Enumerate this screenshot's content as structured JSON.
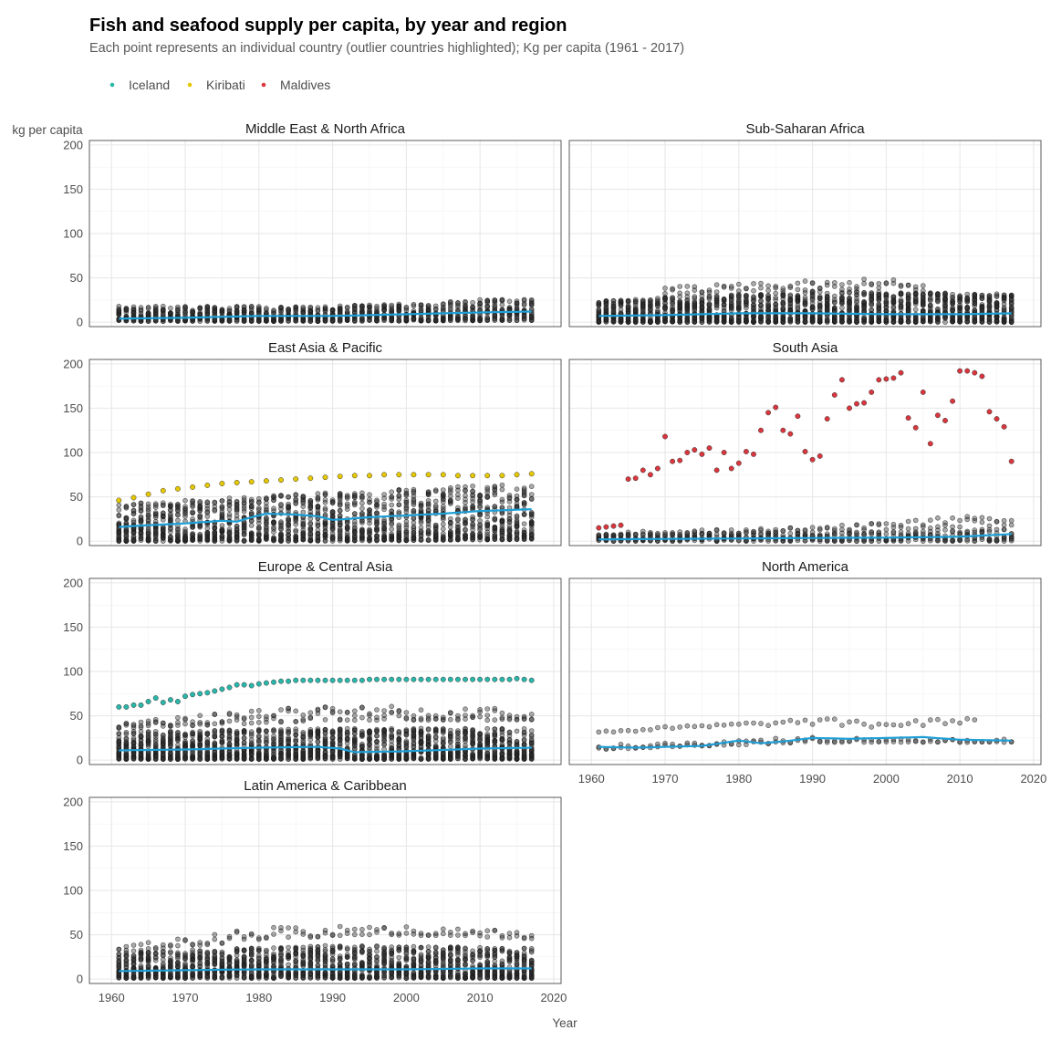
{
  "chart_data": {
    "type": "scatter",
    "title": "Fish and seafood supply per capita, by year and region",
    "subtitle": "Each point represents an individual country (outlier countries highlighted); Kg per capita (1961 - 2017)",
    "xlabel": "Year",
    "ylabel": "kg per capita",
    "xlim": [
      1957,
      2021
    ],
    "ylim": [
      -5,
      205
    ],
    "x_ticks": [
      1960,
      1970,
      1980,
      1990,
      2000,
      2010,
      2020
    ],
    "y_ticks": [
      0,
      50,
      100,
      150,
      200
    ],
    "grid": true,
    "legend": {
      "position": "top-left",
      "entries": [
        {
          "name": "Iceland",
          "color": "#2ab7aa"
        },
        {
          "name": "Kiribati",
          "color": "#e6c800"
        },
        {
          "name": "Maldives",
          "color": "#d9363e"
        }
      ]
    },
    "colors": {
      "points": "#1a1a1a",
      "trend": "#1e9fd6"
    },
    "facets": [
      {
        "name": "Middle East & North Africa",
        "bands": [
          {
            "x": [
              1961,
              1990,
              2017
            ],
            "min": [
              1,
              1,
              2
            ],
            "max": [
              18,
              18,
              28
            ],
            "n": 18
          }
        ],
        "trend": {
          "x": [
            1961,
            1970,
            1980,
            1990,
            2000,
            2010,
            2017
          ],
          "y": [
            4,
            5,
            7,
            7,
            9,
            11,
            12
          ]
        },
        "highlighted": []
      },
      {
        "name": "Sub-Saharan Africa",
        "bands": [
          {
            "x": [
              1961,
              1990,
              2017
            ],
            "min": [
              0,
              0,
              0
            ],
            "max": [
              25,
              35,
              32
            ],
            "n": 30
          },
          {
            "x": [
              1970,
              1985,
              2000,
              2005
            ],
            "min": [
              32,
              35,
              38,
              35
            ],
            "max": [
              40,
              45,
              50,
              45
            ],
            "n": 2
          }
        ],
        "trend": {
          "x": [
            1961,
            1970,
            1980,
            1990,
            2000,
            2010,
            2017
          ],
          "y": [
            7,
            8,
            10,
            10,
            9,
            9,
            10
          ]
        },
        "highlighted": []
      },
      {
        "name": "East Asia & Pacific",
        "bands": [
          {
            "x": [
              1961,
              1990,
              2017
            ],
            "min": [
              0,
              0,
              2
            ],
            "max": [
              42,
              55,
              65
            ],
            "n": 28
          }
        ],
        "trend": {
          "x": [
            1961,
            1965,
            1970,
            1975,
            1977,
            1979,
            1981,
            1985,
            1988,
            1990,
            1992,
            1995,
            2000,
            2005,
            2010,
            2017
          ],
          "y": [
            16,
            18,
            20,
            23,
            22,
            27,
            31,
            30,
            28,
            24,
            25,
            27,
            29,
            31,
            34,
            36
          ]
        },
        "highlighted": [
          {
            "name": "Kiribati",
            "x": [
              1961,
              1963,
              1965,
              1967,
              1969,
              1971,
              1973,
              1975,
              1977,
              1979,
              1981,
              1983,
              1985,
              1987,
              1989,
              1991,
              1993,
              1995,
              1997,
              1999,
              2001,
              2003,
              2005,
              2007,
              2009,
              2011,
              2013,
              2015,
              2017
            ],
            "y": [
              46,
              49,
              53,
              57,
              59,
              61,
              63,
              65,
              66,
              67,
              68,
              69,
              70,
              71,
              72,
              73,
              74,
              74,
              75,
              75,
              75,
              75,
              75,
              74,
              74,
              74,
              74,
              75,
              76
            ]
          }
        ]
      },
      {
        "name": "South Asia",
        "bands": [
          {
            "x": [
              1961,
              1990,
              2017
            ],
            "min": [
              0,
              0,
              0
            ],
            "max": [
              8,
              10,
              14
            ],
            "n": 7
          },
          {
            "x": [
              1961,
              1990,
              2017
            ],
            "min": [
              6,
              10,
              18
            ],
            "max": [
              10,
              16,
              32
            ],
            "n": 2
          }
        ],
        "trend": {
          "x": [
            1961,
            1980,
            2000,
            2010,
            2017
          ],
          "y": [
            2,
            3,
            4,
            5,
            8
          ]
        },
        "highlighted": [
          {
            "name": "Maldives",
            "x": [
              1961,
              1962,
              1963,
              1964,
              1965,
              1966,
              1967,
              1968,
              1969,
              1970,
              1971,
              1972,
              1973,
              1974,
              1975,
              1976,
              1977,
              1978,
              1979,
              1980,
              1981,
              1982,
              1983,
              1984,
              1985,
              1986,
              1987,
              1988,
              1989,
              1990,
              1991,
              1992,
              1993,
              1994,
              1995,
              1996,
              1997,
              1998,
              1999,
              2000,
              2001,
              2002,
              2003,
              2004,
              2005,
              2006,
              2007,
              2008,
              2009,
              2010,
              2011,
              2012,
              2013,
              2014,
              2015,
              2016,
              2017
            ],
            "y": [
              15,
              16,
              17,
              18,
              70,
              71,
              80,
              75,
              82,
              118,
              90,
              91,
              100,
              103,
              98,
              105,
              80,
              100,
              82,
              88,
              101,
              98,
              125,
              145,
              151,
              125,
              121,
              141,
              101,
              92,
              96,
              138,
              165,
              182,
              150,
              155,
              156,
              168,
              182,
              183,
              184,
              190,
              139,
              128,
              168,
              110,
              142,
              136,
              158,
              192,
              192,
              190,
              186,
              146,
              138,
              129,
              90
            ]
          }
        ]
      },
      {
        "name": "Europe & Central Asia",
        "bands": [
          {
            "x": [
              1961,
              1990,
              2017
            ],
            "min": [
              1,
              1,
              1
            ],
            "max": [
              32,
              36,
              36
            ],
            "n": 30
          },
          {
            "x": [
              1961,
              1975,
              1990,
              2017
            ],
            "min": [
              36,
              40,
              45,
              45
            ],
            "max": [
              42,
              55,
              62,
              58
            ],
            "n": 3
          }
        ],
        "trend": {
          "x": [
            1961,
            1970,
            1980,
            1988,
            1991,
            1993,
            2000,
            2010,
            2017
          ],
          "y": [
            11,
            12,
            14,
            15,
            13,
            9,
            10,
            13,
            14
          ]
        },
        "highlighted": [
          {
            "name": "Iceland",
            "x": [
              1961,
              1962,
              1963,
              1964,
              1965,
              1966,
              1967,
              1968,
              1969,
              1970,
              1971,
              1972,
              1973,
              1974,
              1975,
              1976,
              1977,
              1978,
              1979,
              1980,
              1981,
              1982,
              1983,
              1984,
              1985,
              1986,
              1987,
              1988,
              1989,
              1990,
              1991,
              1992,
              1993,
              1994,
              1995,
              1996,
              1997,
              1998,
              1999,
              2000,
              2001,
              2002,
              2003,
              2004,
              2005,
              2006,
              2007,
              2008,
              2009,
              2010,
              2011,
              2012,
              2013,
              2014,
              2015,
              2016,
              2017
            ],
            "y": [
              60,
              60,
              62,
              62,
              66,
              70,
              65,
              68,
              66,
              72,
              74,
              75,
              76,
              78,
              80,
              82,
              85,
              85,
              84,
              86,
              87,
              88,
              89,
              89,
              90,
              90,
              90,
              90,
              90,
              90,
              90,
              90,
              90,
              90,
              91,
              91,
              91,
              91,
              91,
              91,
              91,
              91,
              91,
              91,
              91,
              91,
              91,
              91,
              91,
              91,
              91,
              91,
              91,
              91,
              92,
              91,
              90
            ]
          }
        ]
      },
      {
        "name": "North America",
        "bands": [
          {
            "x": [
              1961,
              1990,
              2017
            ],
            "min": [
              12,
              20,
              20
            ],
            "max": [
              17,
              26,
              24
            ],
            "n": 2
          },
          {
            "x": [
              1961,
              1980,
              1990,
              2000,
              2012
            ],
            "min": [
              30,
              38,
              40,
              35,
              43
            ],
            "max": [
              34,
              42,
              47,
              45,
              47
            ],
            "n": 1
          }
        ],
        "trend": {
          "x": [
            1961,
            1966,
            1970,
            1975,
            1980,
            1983,
            1986,
            1990,
            1995,
            2000,
            2005,
            2010,
            2017
          ],
          "y": [
            15,
            14,
            15,
            16,
            22,
            19,
            21,
            25,
            24,
            25,
            26,
            23,
            22
          ]
        },
        "highlighted": []
      },
      {
        "name": "Latin America & Caribbean",
        "bands": [
          {
            "x": [
              1961,
              1990,
              2017
            ],
            "min": [
              1,
              1,
              1
            ],
            "max": [
              30,
              38,
              35
            ],
            "n": 28
          },
          {
            "x": [
              1961,
              1980,
              1995,
              2008,
              2017
            ],
            "min": [
              30,
              44,
              50,
              48,
              45
            ],
            "max": [
              37,
              58,
              60,
              58,
              53
            ],
            "n": 2
          }
        ],
        "trend": {
          "x": [
            1961,
            1970,
            1980,
            1990,
            2000,
            2010,
            2017
          ],
          "y": [
            9,
            10,
            11,
            11,
            11,
            12,
            12
          ]
        },
        "highlighted": []
      }
    ]
  }
}
